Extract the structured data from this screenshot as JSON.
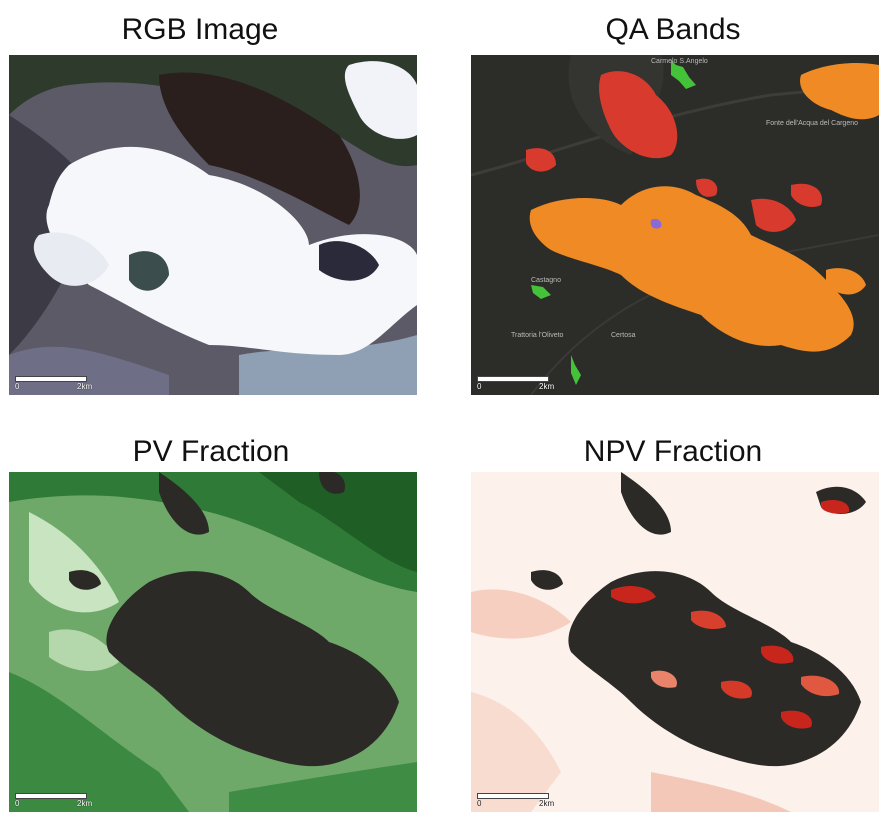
{
  "panels": [
    {
      "title": "RGB Image",
      "scale": {
        "zero": "0",
        "distance": "2km"
      }
    },
    {
      "title": "QA Bands",
      "scale": {
        "zero": "0",
        "distance": "2km"
      },
      "place_labels": {
        "top": "Carmelo S.Angelo",
        "right": "Fonte dell'Acqua del Cargeno",
        "mid": "Castagno",
        "bottom": "Trattoria l'Oliveto",
        "bottom_right": "Certosa"
      }
    },
    {
      "title": "PV Fraction",
      "scale": {
        "zero": "0",
        "distance": "2km"
      }
    },
    {
      "title": "NPV Fraction",
      "scale": {
        "zero": "0",
        "distance": "2km"
      }
    }
  ],
  "colors": {
    "qa_cloud": "#f08a24",
    "qa_shadow": "#d93a2e",
    "qa_snow": "#44c23a",
    "qa_water": "#8a6bd6",
    "pv_high": "#1f5e24",
    "pv_low": "#eef6ea",
    "npv_low": "#fdf1ec",
    "npv_high": "#c8251c",
    "cloud_mask": "#2b2a26"
  }
}
